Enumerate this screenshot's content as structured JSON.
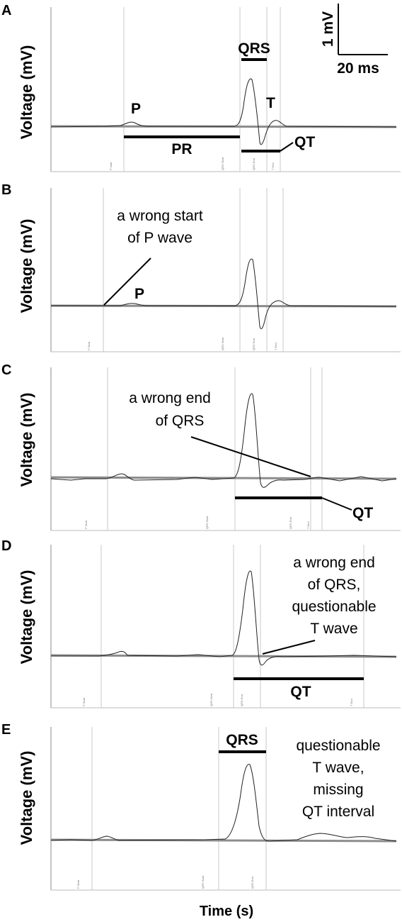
{
  "chart_data": {
    "type": "line",
    "xlabel": "Time (s)",
    "scalebar": {
      "voltage_label": "1 mV",
      "time_label": "20 ms"
    },
    "panels": [
      {
        "letter": "A",
        "ylabel": "Voltage (mV)",
        "markers": [
          "P start",
          "QRS Start",
          "QRS End",
          "T End"
        ],
        "wave_labels": [
          "P",
          "T"
        ],
        "intervals": [
          "QRS",
          "PR",
          "QT"
        ],
        "annotation": []
      },
      {
        "letter": "B",
        "ylabel": "Voltage (mV)",
        "markers": [
          "P Start",
          "QRS Start",
          "QRS End",
          "T End"
        ],
        "wave_labels": [
          "P"
        ],
        "intervals": [],
        "annotation": [
          "a wrong start",
          "of P wave"
        ]
      },
      {
        "letter": "C",
        "ylabel": "Voltage (mV)",
        "markers": [
          "P Start",
          "QRS Start",
          "QRS End",
          "T End"
        ],
        "wave_labels": [],
        "intervals": [
          "QT"
        ],
        "annotation": [
          "a wrong end",
          "of QRS"
        ]
      },
      {
        "letter": "D",
        "ylabel": "Voltage (mV)",
        "markers": [
          "P Start",
          "QRS Start",
          "QRS End",
          "T End"
        ],
        "wave_labels": [],
        "intervals": [
          "QT"
        ],
        "annotation": [
          "a wrong end",
          "of QRS,",
          "questionable",
          "T wave"
        ]
      },
      {
        "letter": "E",
        "ylabel": "Voltage (mV)",
        "markers": [
          "P Start",
          "QRS Start",
          "QRS End"
        ],
        "wave_labels": [],
        "intervals": [
          "QRS"
        ],
        "annotation": [
          "questionable",
          "T wave,",
          "missing",
          "QT interval"
        ]
      }
    ]
  }
}
